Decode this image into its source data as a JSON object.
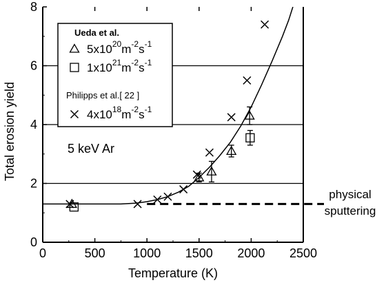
{
  "chart_data": {
    "type": "scatter",
    "xlabel": "Temperature (K)",
    "ylabel": "Total erosion yield",
    "xlim": [
      0,
      2500
    ],
    "ylim": [
      0,
      8
    ],
    "x_ticks": [
      "0",
      "500",
      "1000",
      "1500",
      "2000",
      "2500"
    ],
    "y_ticks": [
      "0",
      "2",
      "4",
      "6",
      "8"
    ],
    "grid": "horizontal lines at y = 2, 4, 6, 8",
    "legend_placement": "top-left",
    "legend": {
      "group1_title": "Ueda et al.",
      "group2_title": "Philipps et al.[ 22 ]",
      "entries": [
        {
          "marker": "triangle",
          "mantissa": "5x10",
          "exp": "20",
          "unit": "m",
          "unit_exp1": "-2",
          "s": "s",
          "unit_exp2": "-1"
        },
        {
          "marker": "square",
          "mantissa": "1x10",
          "exp": "21",
          "unit": "m",
          "unit_exp1": "-2",
          "s": "s",
          "unit_exp2": "-1"
        },
        {
          "marker": "cross",
          "mantissa": "4x10",
          "exp": "18",
          "unit": "m",
          "unit_exp1": "-2",
          "s": "s",
          "unit_exp2": "-1"
        }
      ]
    },
    "annotations": {
      "ion": "5 keV Ar",
      "sputtering_line1": "physical",
      "sputtering_line2": "sputtering"
    },
    "series": [
      {
        "name": "5x10^20 m^-2 s^-1 (Ueda et al.)",
        "marker": "triangle",
        "points": [
          {
            "x": 280,
            "y": 1.3
          },
          {
            "x": 1500,
            "y": 2.2,
            "err": 0.15
          },
          {
            "x": 1620,
            "y": 2.4,
            "err": 0.35
          },
          {
            "x": 1810,
            "y": 3.1,
            "err": 0.2
          },
          {
            "x": 1985,
            "y": 4.3,
            "err": 0.3
          }
        ]
      },
      {
        "name": "1x10^21 m^-2 s^-1 (Ueda et al.)",
        "marker": "square",
        "points": [
          {
            "x": 300,
            "y": 1.2
          },
          {
            "x": 1990,
            "y": 3.55,
            "err": 0.25
          }
        ]
      },
      {
        "name": "4x10^18 m^-2 s^-1 (Philipps et al.)",
        "marker": "cross",
        "points": [
          {
            "x": 260,
            "y": 1.3
          },
          {
            "x": 910,
            "y": 1.3
          },
          {
            "x": 1100,
            "y": 1.45
          },
          {
            "x": 1200,
            "y": 1.55
          },
          {
            "x": 1350,
            "y": 1.8
          },
          {
            "x": 1480,
            "y": 2.3
          },
          {
            "x": 1600,
            "y": 3.05
          },
          {
            "x": 1810,
            "y": 4.25
          },
          {
            "x": 1960,
            "y": 5.5
          },
          {
            "x": 2130,
            "y": 7.4
          }
        ]
      }
    ],
    "fit_curve": [
      [
        0,
        1.3
      ],
      [
        750,
        1.3
      ],
      [
        900,
        1.33
      ],
      [
        1000,
        1.38
      ],
      [
        1100,
        1.45
      ],
      [
        1200,
        1.55
      ],
      [
        1300,
        1.7
      ],
      [
        1400,
        1.9
      ],
      [
        1500,
        2.2
      ],
      [
        1600,
        2.55
      ],
      [
        1700,
        2.95
      ],
      [
        1800,
        3.4
      ],
      [
        1900,
        3.95
      ],
      [
        2000,
        4.6
      ],
      [
        2100,
        5.35
      ],
      [
        2200,
        6.15
      ],
      [
        2300,
        7.0
      ],
      [
        2360,
        7.55
      ],
      [
        2400,
        8.0
      ]
    ],
    "sputtering_level": {
      "y": 1.3,
      "x_start": 1000,
      "x_end": 2500
    }
  }
}
